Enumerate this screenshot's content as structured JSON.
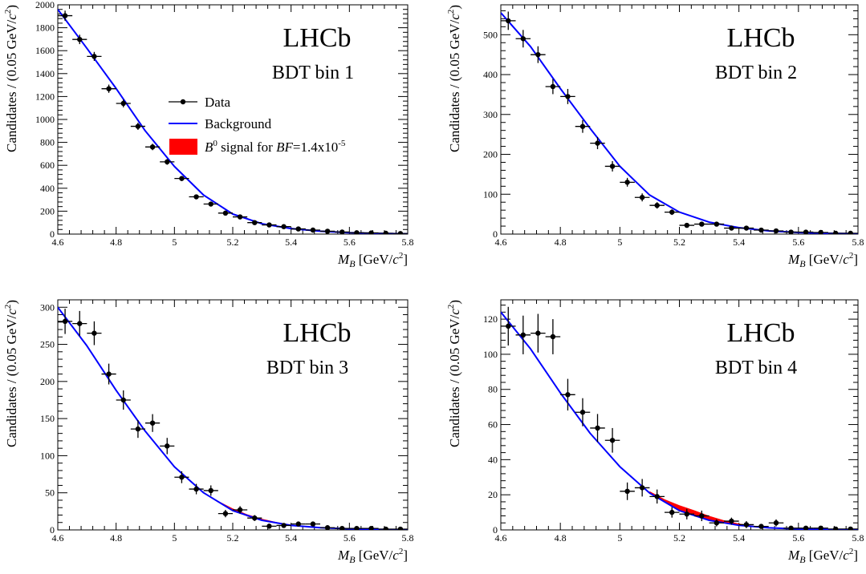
{
  "figure": {
    "legend": {
      "data_label": "Data",
      "background_label": "Background",
      "signal_label_parts": [
        "B",
        "0",
        " signal for ",
        "BF",
        "=1.4x10",
        "-5"
      ]
    },
    "colors": {
      "data": "#000000",
      "background": "#0000ff",
      "signal": "#ff0000"
    }
  },
  "chart_data": [
    {
      "type": "scatter",
      "experiment_label": "LHCb",
      "bin_label": "BDT bin 1",
      "ylabel_parts": [
        "Candidates / (0.05 GeV/",
        "c",
        "2",
        ")"
      ],
      "xlabel_parts": [
        "M",
        "B",
        " [GeV/",
        "c",
        "2",
        "]"
      ],
      "xlim": [
        4.6,
        5.8
      ],
      "ylim": [
        0,
        2000
      ],
      "xticks": [
        4.6,
        4.8,
        5,
        5.2,
        5.4,
        5.6,
        5.8
      ],
      "yticks": [
        0,
        200,
        400,
        600,
        800,
        1000,
        1200,
        1400,
        1600,
        1800,
        2000
      ],
      "x_bin_halfwidth": 0.025,
      "series": [
        {
          "name": "Data",
          "style": "points_with_errorbars",
          "x": [
            4.625,
            4.675,
            4.725,
            4.775,
            4.825,
            4.875,
            4.925,
            4.975,
            5.025,
            5.075,
            5.125,
            5.175,
            5.225,
            5.275,
            5.325,
            5.375,
            5.425,
            5.475,
            5.525,
            5.575,
            5.625,
            5.675,
            5.725,
            5.775
          ],
          "y": [
            1905,
            1698,
            1550,
            1268,
            1140,
            940,
            760,
            630,
            485,
            325,
            262,
            183,
            150,
            100,
            80,
            65,
            45,
            35,
            25,
            18,
            12,
            10,
            7,
            5
          ],
          "yerr": [
            44,
            41,
            39,
            36,
            34,
            31,
            28,
            25,
            22,
            18,
            16,
            14,
            12,
            10,
            9,
            8,
            7,
            6,
            5,
            4,
            3,
            3,
            3,
            2
          ]
        },
        {
          "name": "Background",
          "style": "line",
          "x": [
            4.6,
            4.7,
            4.8,
            4.9,
            5.0,
            5.1,
            5.2,
            5.3,
            5.4,
            5.5,
            5.6,
            5.7,
            5.8
          ],
          "y": [
            1960,
            1620,
            1270,
            900,
            590,
            340,
            175,
            90,
            48,
            25,
            12,
            6,
            3
          ]
        }
      ]
    },
    {
      "type": "scatter",
      "experiment_label": "LHCb",
      "bin_label": "BDT bin 2",
      "ylabel_parts": [
        "Candidates / (0.05 GeV/",
        "c",
        "2",
        ")"
      ],
      "xlabel_parts": [
        "M",
        "B",
        " [GeV/",
        "c",
        "2",
        "]"
      ],
      "xlim": [
        4.6,
        5.8
      ],
      "ylim": [
        0,
        575
      ],
      "xticks": [
        4.6,
        4.8,
        5,
        5.2,
        5.4,
        5.6,
        5.8
      ],
      "yticks": [
        0,
        100,
        200,
        300,
        400,
        500
      ],
      "x_bin_halfwidth": 0.025,
      "series": [
        {
          "name": "Data",
          "style": "points_with_errorbars",
          "x": [
            4.625,
            4.675,
            4.725,
            4.775,
            4.825,
            4.875,
            4.925,
            4.975,
            5.025,
            5.075,
            5.125,
            5.175,
            5.225,
            5.275,
            5.325,
            5.375,
            5.425,
            5.475,
            5.525,
            5.575,
            5.625,
            5.675,
            5.725,
            5.775
          ],
          "y": [
            535,
            490,
            450,
            370,
            345,
            270,
            228,
            170,
            130,
            92,
            72,
            55,
            22,
            25,
            25,
            15,
            15,
            10,
            8,
            5,
            5,
            4,
            2,
            2
          ],
          "yerr": [
            23,
            22,
            21,
            19,
            19,
            16,
            15,
            13,
            11,
            10,
            8,
            7,
            5,
            5,
            5,
            4,
            4,
            3,
            3,
            2,
            2,
            2,
            1,
            1
          ]
        },
        {
          "name": "Background",
          "style": "line",
          "x": [
            4.6,
            4.7,
            4.8,
            4.9,
            5.0,
            5.1,
            5.2,
            5.3,
            5.4,
            5.5,
            5.6,
            5.7,
            5.8
          ],
          "y": [
            555,
            470,
            365,
            265,
            170,
            98,
            55,
            30,
            16,
            8,
            4,
            2,
            1
          ]
        }
      ]
    },
    {
      "type": "scatter",
      "experiment_label": "LHCb",
      "bin_label": "BDT bin 3",
      "ylabel_parts": [
        "Candidates / (0.05 GeV/",
        "c",
        "2",
        ")"
      ],
      "xlabel_parts": [
        "M",
        "B",
        " [GeV/",
        "c",
        "2",
        "]"
      ],
      "xlim": [
        4.6,
        5.8
      ],
      "ylim": [
        0,
        310
      ],
      "xticks": [
        4.6,
        4.8,
        5,
        5.2,
        5.4,
        5.6,
        5.8
      ],
      "yticks": [
        0,
        50,
        100,
        150,
        200,
        250,
        300
      ],
      "x_bin_halfwidth": 0.025,
      "series": [
        {
          "name": "Data",
          "style": "points_with_errorbars",
          "x": [
            4.625,
            4.675,
            4.725,
            4.775,
            4.825,
            4.875,
            4.925,
            4.975,
            5.025,
            5.075,
            5.125,
            5.175,
            5.225,
            5.275,
            5.325,
            5.375,
            5.425,
            5.475,
            5.525,
            5.575,
            5.625,
            5.675,
            5.725,
            5.775
          ],
          "y": [
            281,
            278,
            265,
            210,
            175,
            136,
            144,
            113,
            71,
            55,
            53,
            22,
            27,
            16,
            5,
            6,
            8,
            8,
            3,
            2,
            2,
            2,
            1,
            1
          ],
          "yerr": [
            17,
            17,
            16,
            14,
            13,
            12,
            12,
            11,
            8,
            7,
            7,
            5,
            5,
            4,
            2,
            2,
            3,
            3,
            2,
            1,
            1,
            1,
            1,
            1
          ]
        },
        {
          "name": "Background",
          "style": "line",
          "x": [
            4.6,
            4.7,
            4.8,
            4.9,
            5.0,
            5.1,
            5.2,
            5.3,
            5.4,
            5.5,
            5.6,
            5.7,
            5.8
          ],
          "y": [
            300,
            248,
            188,
            133,
            85,
            50,
            26,
            13,
            6,
            3,
            1.5,
            0.7,
            0.3
          ]
        },
        {
          "name": "B0 signal",
          "style": "band",
          "x": [
            5.1,
            5.15,
            5.2,
            5.25,
            5.3,
            5.35,
            5.4,
            5.45,
            5.5
          ],
          "y_low": [
            50,
            37,
            26,
            18,
            13,
            9,
            6,
            4,
            3
          ],
          "y_high": [
            51,
            39,
            29,
            21,
            15,
            10.5,
            7,
            5,
            3.5
          ]
        }
      ]
    },
    {
      "type": "scatter",
      "experiment_label": "LHCb",
      "bin_label": "BDT bin 4",
      "ylabel_parts": [
        "Candidates / (0.05 GeV/",
        "c",
        "2",
        ")"
      ],
      "xlabel_parts": [
        "M",
        "B",
        " [GeV/",
        "c",
        "2",
        "]"
      ],
      "xlim": [
        4.6,
        5.8
      ],
      "ylim": [
        0,
        131
      ],
      "xticks": [
        4.6,
        4.8,
        5,
        5.2,
        5.4,
        5.6,
        5.8
      ],
      "yticks": [
        0,
        20,
        40,
        60,
        80,
        100,
        120
      ],
      "x_bin_halfwidth": 0.025,
      "series": [
        {
          "name": "Data",
          "style": "points_with_errorbars",
          "x": [
            4.625,
            4.675,
            4.725,
            4.775,
            4.825,
            4.875,
            4.925,
            4.975,
            5.025,
            5.075,
            5.125,
            5.175,
            5.225,
            5.275,
            5.325,
            5.375,
            5.425,
            5.475,
            5.525,
            5.575,
            5.625,
            5.675,
            5.725,
            5.775
          ],
          "y": [
            116,
            111,
            112,
            110,
            77,
            67,
            58,
            51,
            22,
            24,
            19,
            10,
            9,
            8,
            4,
            5,
            3,
            2,
            4,
            1,
            1,
            1,
            0.5,
            0.5
          ],
          "yerr": [
            11,
            11,
            11,
            10,
            9,
            8,
            8,
            7,
            5,
            5,
            4,
            3,
            3,
            3,
            2,
            2,
            2,
            1,
            2,
            1,
            1,
            1,
            1,
            1
          ]
        },
        {
          "name": "Background",
          "style": "line",
          "x": [
            4.6,
            4.7,
            4.8,
            4.9,
            5.0,
            5.1,
            5.2,
            5.3,
            5.4,
            5.5,
            5.6,
            5.7,
            5.8
          ],
          "y": [
            124,
            103,
            78,
            55,
            36,
            21,
            11,
            5.5,
            2.6,
            1.2,
            0.5,
            0.2,
            0.1
          ]
        },
        {
          "name": "B0 signal",
          "style": "band",
          "x": [
            5.1,
            5.15,
            5.2,
            5.25,
            5.3,
            5.35,
            5.4,
            5.45,
            5.5
          ],
          "y_low": [
            21,
            15.5,
            11,
            7.8,
            5.4,
            3.7,
            2.5,
            1.7,
            1.1
          ],
          "y_high": [
            22,
            17.5,
            14,
            11.2,
            8,
            5.5,
            3.6,
            2.3,
            1.4
          ]
        }
      ]
    }
  ]
}
